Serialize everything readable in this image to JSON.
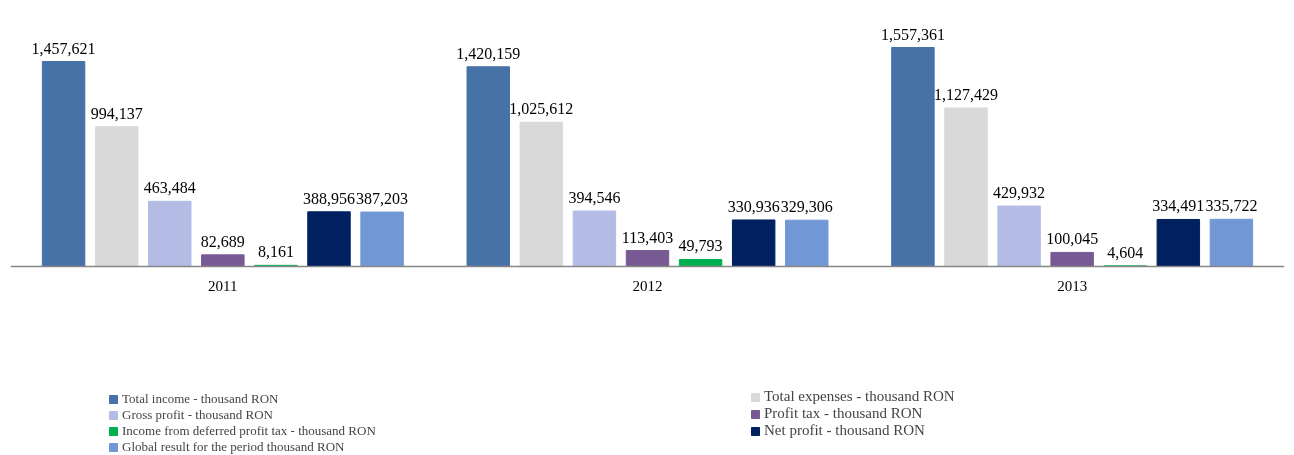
{
  "chart_data": {
    "type": "bar",
    "categories": [
      "2011",
      "2012",
      "2013"
    ],
    "series": [
      {
        "name": "Total income - thousand RON",
        "color": "#4672a8",
        "values": [
          1457621,
          1420159,
          1557361
        ],
        "value_labels": [
          "1,457,621",
          "1,420,159",
          "1,557,361"
        ]
      },
      {
        "name": "Total expenses - thousand RON",
        "color": "#d9d9d9",
        "values": [
          994137,
          1025612,
          1127429
        ],
        "value_labels": [
          "994,137",
          "1,025,612",
          "1,127,429"
        ]
      },
      {
        "name": "Gross profit - thousand RON",
        "color": "#b4bce6",
        "values": [
          463484,
          394546,
          429932
        ],
        "value_labels": [
          "463,484",
          "394,546",
          "429,932"
        ]
      },
      {
        "name": "Profit tax - thousand RON",
        "color": "#775a93",
        "values": [
          82689,
          113403,
          100045
        ],
        "value_labels": [
          "82,689",
          "113,403",
          "100,045"
        ]
      },
      {
        "name": "Income from deferred profit tax - thousand RON",
        "color": "#00b050",
        "values": [
          8161,
          49793,
          4604
        ],
        "value_labels": [
          "8,161",
          "49,793",
          "4,604"
        ]
      },
      {
        "name": "Net profit - thousand RON",
        "color": "#002060",
        "values": [
          388956,
          330936,
          334491
        ],
        "value_labels": [
          "388,956",
          "330,936",
          "334,491"
        ]
      },
      {
        "name": "Global result for the period thousand RON",
        "color": "#7197d4",
        "values": [
          387203,
          329306,
          335722
        ],
        "value_labels": [
          "387,203",
          "329,306",
          "335,722"
        ]
      }
    ],
    "legend": "bottom"
  }
}
